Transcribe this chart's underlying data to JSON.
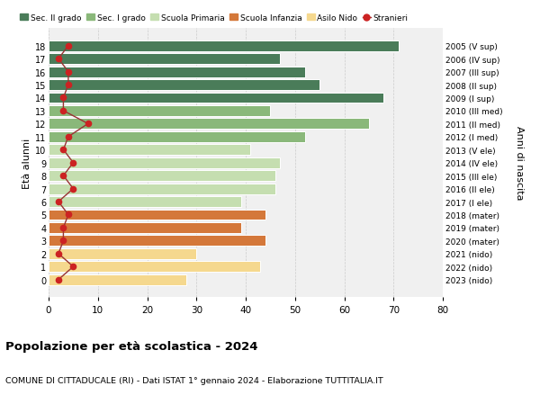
{
  "ages": [
    18,
    17,
    16,
    15,
    14,
    13,
    12,
    11,
    10,
    9,
    8,
    7,
    6,
    5,
    4,
    3,
    2,
    1,
    0
  ],
  "bar_values": [
    71,
    47,
    52,
    55,
    68,
    45,
    65,
    52,
    41,
    47,
    46,
    46,
    39,
    44,
    39,
    44,
    30,
    43,
    28
  ],
  "bar_colors": [
    "#4a7c59",
    "#4a7c59",
    "#4a7c59",
    "#4a7c59",
    "#4a7c59",
    "#8ab87a",
    "#8ab87a",
    "#8ab87a",
    "#c5deb0",
    "#c5deb0",
    "#c5deb0",
    "#c5deb0",
    "#c5deb0",
    "#d4783a",
    "#d4783a",
    "#d4783a",
    "#f5d88e",
    "#f5d88e",
    "#f5d88e"
  ],
  "stranieri_values": [
    4,
    2,
    4,
    4,
    3,
    3,
    8,
    4,
    3,
    5,
    3,
    5,
    2,
    4,
    3,
    3,
    2,
    5,
    2
  ],
  "right_labels": [
    "2005 (V sup)",
    "2006 (IV sup)",
    "2007 (III sup)",
    "2008 (II sup)",
    "2009 (I sup)",
    "2010 (III med)",
    "2011 (II med)",
    "2012 (I med)",
    "2013 (V ele)",
    "2014 (IV ele)",
    "2015 (III ele)",
    "2016 (II ele)",
    "2017 (I ele)",
    "2018 (mater)",
    "2019 (mater)",
    "2020 (mater)",
    "2021 (nido)",
    "2022 (nido)",
    "2023 (nido)"
  ],
  "legend_labels": [
    "Sec. II grado",
    "Sec. I grado",
    "Scuola Primaria",
    "Scuola Infanzia",
    "Asilo Nido",
    "Stranieri"
  ],
  "legend_colors": [
    "#4a7c59",
    "#8ab87a",
    "#c5deb0",
    "#d4783a",
    "#f5d88e",
    "#cc2222"
  ],
  "ylabel_left": "Età alunni",
  "ylabel_right": "Anni di nascita",
  "title": "Popolazione per età scolastica - 2024",
  "subtitle": "COMUNE DI CITTADUCALE (RI) - Dati ISTAT 1° gennaio 2024 - Elaborazione TUTTITALIA.IT",
  "xlim": [
    0,
    80
  ],
  "xticks": [
    0,
    10,
    20,
    30,
    40,
    50,
    60,
    70,
    80
  ],
  "bg_color": "#ffffff",
  "bar_bg_color": "#f0f0f0",
  "grid_color": "#cccccc",
  "stranieri_line_color": "#993333",
  "stranieri_marker_color": "#cc2222"
}
